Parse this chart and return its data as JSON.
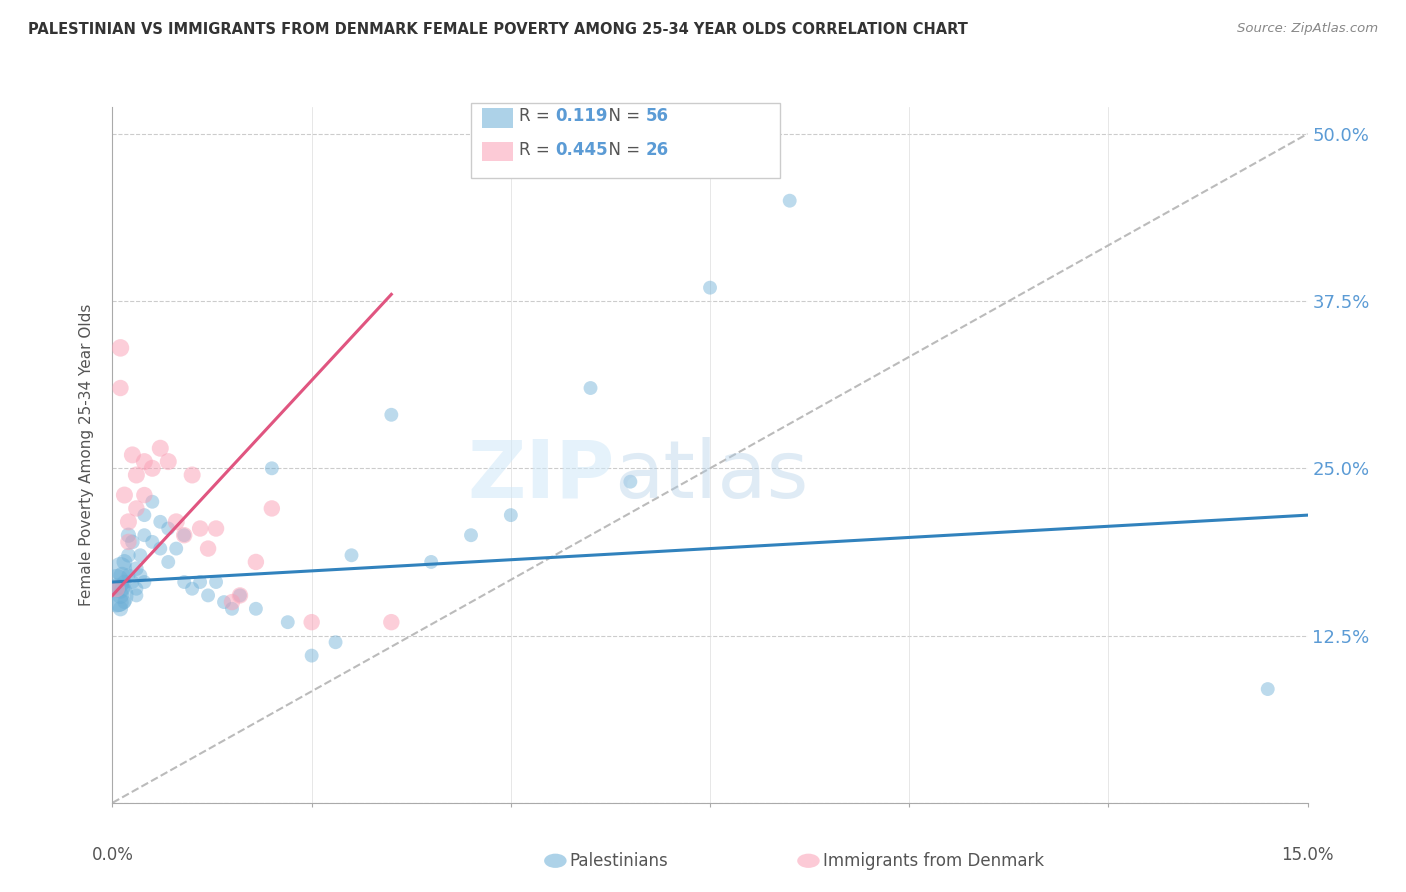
{
  "title": "PALESTINIAN VS IMMIGRANTS FROM DENMARK FEMALE POVERTY AMONG 25-34 YEAR OLDS CORRELATION CHART",
  "source": "Source: ZipAtlas.com",
  "ylabel": "Female Poverty Among 25-34 Year Olds",
  "yticks": [
    0.0,
    0.125,
    0.25,
    0.375,
    0.5
  ],
  "ytick_labels": [
    "",
    "12.5%",
    "25.0%",
    "37.5%",
    "50.0%"
  ],
  "xmin": 0.0,
  "xmax": 0.15,
  "ymin": 0.0,
  "ymax": 0.52,
  "legend1_R": "0.119",
  "legend1_N": "56",
  "legend2_R": "0.445",
  "legend2_N": "26",
  "blue_color": "#6baed6",
  "pink_color": "#fa9fb5",
  "line_blue": "#3182bd",
  "line_pink": "#e05580",
  "diag_color": "#bbbbbb",
  "text_color": "#5b9bd5",
  "title_color": "#333333",
  "watermark_zip": "ZIP",
  "watermark_atlas": "atlas",
  "palestinians_x": [
    0.0005,
    0.0005,
    0.0008,
    0.001,
    0.001,
    0.001,
    0.001,
    0.0012,
    0.0012,
    0.0015,
    0.0015,
    0.0015,
    0.002,
    0.002,
    0.002,
    0.0025,
    0.0025,
    0.003,
    0.003,
    0.003,
    0.0035,
    0.0035,
    0.004,
    0.004,
    0.004,
    0.005,
    0.005,
    0.006,
    0.006,
    0.007,
    0.007,
    0.008,
    0.009,
    0.009,
    0.01,
    0.011,
    0.012,
    0.013,
    0.014,
    0.015,
    0.016,
    0.018,
    0.02,
    0.022,
    0.025,
    0.028,
    0.03,
    0.035,
    0.04,
    0.045,
    0.05,
    0.06,
    0.065,
    0.075,
    0.085,
    0.145
  ],
  "palestinians_y": [
    0.155,
    0.165,
    0.15,
    0.175,
    0.16,
    0.155,
    0.145,
    0.17,
    0.16,
    0.18,
    0.165,
    0.15,
    0.2,
    0.185,
    0.17,
    0.195,
    0.165,
    0.175,
    0.16,
    0.155,
    0.185,
    0.17,
    0.215,
    0.2,
    0.165,
    0.225,
    0.195,
    0.21,
    0.19,
    0.205,
    0.18,
    0.19,
    0.2,
    0.165,
    0.16,
    0.165,
    0.155,
    0.165,
    0.15,
    0.145,
    0.155,
    0.145,
    0.25,
    0.135,
    0.11,
    0.12,
    0.185,
    0.29,
    0.18,
    0.2,
    0.215,
    0.31,
    0.24,
    0.385,
    0.45,
    0.085
  ],
  "palestinians_sizes": [
    600,
    350,
    200,
    280,
    200,
    150,
    120,
    150,
    120,
    130,
    110,
    100,
    120,
    110,
    100,
    110,
    100,
    110,
    100,
    100,
    100,
    100,
    100,
    100,
    100,
    100,
    100,
    100,
    100,
    100,
    100,
    100,
    100,
    100,
    100,
    100,
    100,
    100,
    100,
    100,
    100,
    100,
    100,
    100,
    100,
    100,
    100,
    100,
    100,
    100,
    100,
    100,
    100,
    100,
    100,
    100
  ],
  "denmark_x": [
    0.0005,
    0.001,
    0.001,
    0.0015,
    0.002,
    0.002,
    0.0025,
    0.003,
    0.003,
    0.004,
    0.004,
    0.005,
    0.006,
    0.007,
    0.008,
    0.009,
    0.01,
    0.011,
    0.012,
    0.013,
    0.015,
    0.016,
    0.018,
    0.02,
    0.025,
    0.035
  ],
  "denmark_y": [
    0.16,
    0.34,
    0.31,
    0.23,
    0.21,
    0.195,
    0.26,
    0.245,
    0.22,
    0.255,
    0.23,
    0.25,
    0.265,
    0.255,
    0.21,
    0.2,
    0.245,
    0.205,
    0.19,
    0.205,
    0.15,
    0.155,
    0.18,
    0.22,
    0.135,
    0.135
  ],
  "denmark_sizes": [
    150,
    160,
    140,
    150,
    150,
    140,
    150,
    150,
    140,
    150,
    140,
    150,
    150,
    150,
    150,
    140,
    150,
    140,
    140,
    140,
    140,
    140,
    140,
    140,
    140,
    140
  ],
  "blue_trend_x": [
    0.0,
    0.15
  ],
  "blue_trend_y": [
    0.165,
    0.215
  ],
  "pink_trend_x": [
    0.0,
    0.035
  ],
  "pink_trend_y": [
    0.155,
    0.38
  ]
}
